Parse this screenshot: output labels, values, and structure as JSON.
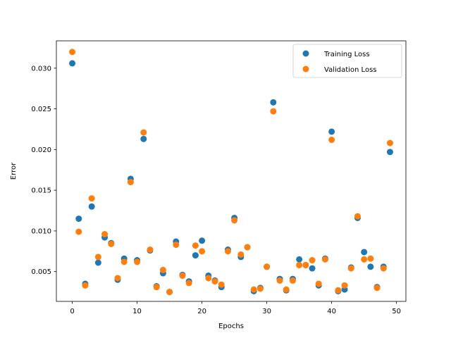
{
  "chart_data": {
    "type": "scatter",
    "title": "",
    "xlabel": "Epochs",
    "ylabel": "Error",
    "xlim": [
      -2.45,
      51.45
    ],
    "ylim": [
      0.00134,
      0.03336
    ],
    "xticks": [
      0,
      10,
      20,
      30,
      40,
      50
    ],
    "xtick_labels": [
      "0",
      "10",
      "20",
      "30",
      "40",
      "50"
    ],
    "yticks": [
      0.005,
      0.01,
      0.015,
      0.02,
      0.025,
      0.03
    ],
    "ytick_labels": [
      "0.005",
      "0.010",
      "0.015",
      "0.020",
      "0.025",
      "0.030"
    ],
    "grid": false,
    "legend_position": "top-right",
    "x": [
      0,
      1,
      2,
      3,
      4,
      5,
      6,
      7,
      8,
      9,
      10,
      11,
      12,
      13,
      14,
      15,
      16,
      17,
      18,
      19,
      20,
      21,
      22,
      23,
      24,
      25,
      26,
      27,
      28,
      29,
      30,
      31,
      32,
      33,
      34,
      35,
      36,
      37,
      38,
      39,
      40,
      41,
      42,
      43,
      44,
      45,
      46,
      47,
      48,
      49
    ],
    "series": [
      {
        "name": "Training Loss",
        "color": "#1f77b4",
        "values": [
          0.0306,
          0.0115,
          0.0035,
          0.013,
          0.0061,
          0.0092,
          0.0085,
          0.004,
          0.0066,
          0.0164,
          0.0064,
          0.0213,
          0.0076,
          0.0032,
          0.0048,
          0.0025,
          0.0087,
          0.0046,
          0.0038,
          0.007,
          0.0088,
          0.0045,
          0.0039,
          0.0031,
          0.0077,
          0.0116,
          0.0068,
          0.008,
          0.0026,
          0.003,
          0.0056,
          0.0258,
          0.0041,
          0.0027,
          0.0041,
          0.0065,
          0.0058,
          0.0054,
          0.0033,
          0.0066,
          0.0222,
          0.0026,
          0.0028,
          0.0055,
          0.0116,
          0.0074,
          0.0056,
          0.0031,
          0.0056,
          0.0197
        ]
      },
      {
        "name": "Validation Loss",
        "color": "#ff7f0e",
        "values": [
          0.032,
          0.0099,
          0.0033,
          0.014,
          0.0068,
          0.0096,
          0.0084,
          0.0042,
          0.0062,
          0.016,
          0.0062,
          0.0221,
          0.0077,
          0.0031,
          0.0052,
          0.0025,
          0.0083,
          0.0045,
          0.0036,
          0.0082,
          0.0075,
          0.0042,
          0.0038,
          0.0034,
          0.0075,
          0.0113,
          0.0071,
          0.008,
          0.0028,
          0.0029,
          0.0056,
          0.0247,
          0.0039,
          0.0028,
          0.0039,
          0.0058,
          0.0058,
          0.0064,
          0.0035,
          0.0065,
          0.0212,
          0.0027,
          0.0033,
          0.0054,
          0.0118,
          0.0065,
          0.0066,
          0.003,
          0.0054,
          0.0208
        ]
      }
    ]
  }
}
